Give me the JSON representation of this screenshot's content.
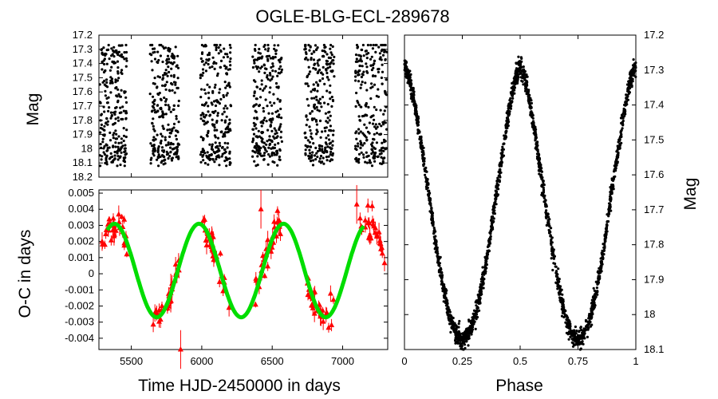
{
  "title": "OGLE-BLG-ECL-289678",
  "chart_data": [
    {
      "id": "light_curve_time",
      "type": "scatter",
      "ylabel": "Mag",
      "xlim": [
        5270,
        7320
      ],
      "ylim": [
        18.2,
        17.2
      ],
      "y_inverted": true,
      "yticks": [
        "17.2",
        "17.3",
        "17.4",
        "17.5",
        "17.6",
        "17.7",
        "17.8",
        "17.9",
        "18",
        "18.1",
        "18.2"
      ],
      "marker_color": "#000000",
      "seasons": [
        {
          "start": 5270,
          "end": 5470
        },
        {
          "start": 5630,
          "end": 5840
        },
        {
          "start": 5990,
          "end": 6210
        },
        {
          "start": 6360,
          "end": 6570
        },
        {
          "start": 6730,
          "end": 6940
        },
        {
          "start": 7090,
          "end": 7320
        }
      ],
      "mag_range": [
        17.3,
        18.1
      ]
    },
    {
      "id": "o_minus_c",
      "type": "scatter+line",
      "xlabel": "Time HJD-2450000 in days",
      "ylabel": "O-C in days",
      "xlim": [
        5270,
        7320
      ],
      "ylim": [
        -0.0047,
        0.0052
      ],
      "xticks": [
        "5500",
        "6000",
        "6500",
        "7000"
      ],
      "xtick_values": [
        5500,
        6000,
        6500,
        7000
      ],
      "yticks": [
        "0.005",
        "0.004",
        "0.003",
        "0.002",
        "0.001",
        "0",
        "-0.001",
        "-0.002",
        "-0.003",
        "-0.004"
      ],
      "ytick_values": [
        0.005,
        0.004,
        0.003,
        0.002,
        0.001,
        0,
        -0.001,
        -0.002,
        -0.003,
        -0.004
      ],
      "point_color": "#ff0000",
      "fit_color": "#00dd00",
      "fit_model": {
        "offset": 0.0002,
        "amplitude": 0.0029,
        "period": 600,
        "phase0": 5230,
        "range": [
          5330,
          7150
        ]
      },
      "clusters": [
        {
          "start": 5290,
          "end": 5470,
          "n": 30
        },
        {
          "start": 5650,
          "end": 5840,
          "n": 30
        },
        {
          "start": 6010,
          "end": 6210,
          "n": 30
        },
        {
          "start": 6380,
          "end": 6570,
          "n": 30
        },
        {
          "start": 6750,
          "end": 6940,
          "n": 30
        },
        {
          "start": 7110,
          "end": 7300,
          "n": 30
        }
      ],
      "outliers": [
        {
          "x": 5850,
          "y": -0.0047
        },
        {
          "x": 6420,
          "y": 0.004
        },
        {
          "x": 7100,
          "y": 0.0043
        },
        {
          "x": 5780,
          "y": -0.0012
        }
      ]
    },
    {
      "id": "phased_light_curve",
      "type": "scatter",
      "xlabel": "Phase",
      "ylabel": "Mag",
      "xlim": [
        0,
        1
      ],
      "ylim": [
        18.1,
        17.2
      ],
      "y_inverted": true,
      "xticks": [
        "0",
        "0.25",
        "0.5",
        "0.75",
        "1"
      ],
      "xtick_values": [
        0,
        0.25,
        0.5,
        0.75,
        1
      ],
      "yticks": [
        "17.2",
        "17.3",
        "17.4",
        "17.5",
        "17.6",
        "17.7",
        "17.8",
        "17.9",
        "18",
        "18.1"
      ],
      "ytick_values": [
        17.2,
        17.3,
        17.4,
        17.5,
        17.6,
        17.7,
        17.8,
        17.9,
        18.0,
        18.1
      ],
      "marker_color": "#000000",
      "max_mag": 17.29,
      "min_primary_mag": 18.07,
      "min_secondary_mag": 18.05
    }
  ]
}
